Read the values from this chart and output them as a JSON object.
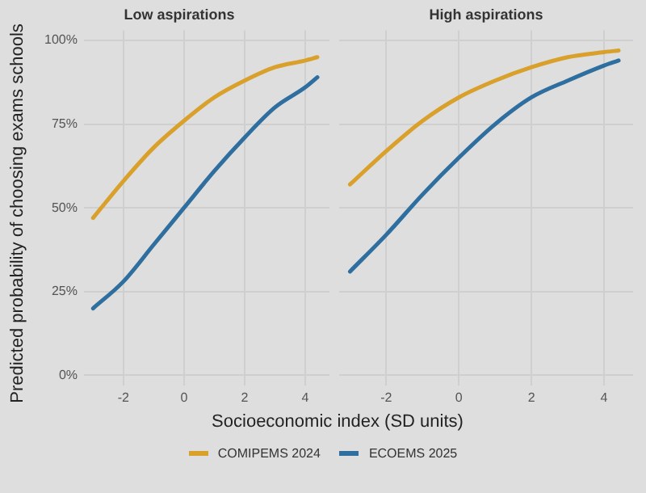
{
  "chart_data": [
    {
      "type": "line",
      "title": "Low aspirations",
      "xlabel": "Socioeconomic index (SD units)",
      "ylabel": "Predicted probability of choosing exams schools",
      "x": [
        -3,
        -2,
        -1,
        0,
        1,
        2,
        3,
        4,
        4.4
      ],
      "series": [
        {
          "name": "COMIPEMS 2024",
          "color": "#d9a02b",
          "values": [
            47,
            58,
            68,
            76,
            83,
            88,
            92,
            94,
            95
          ]
        },
        {
          "name": "ECOEMS 2025",
          "color": "#2f6f9f",
          "values": [
            20,
            28,
            39,
            50,
            61,
            71,
            80,
            86,
            89
          ]
        }
      ],
      "xlim": [
        -3.3,
        4.8
      ],
      "xticks": [
        -2,
        0,
        2,
        4
      ],
      "ylim": [
        -3,
        103
      ],
      "yticks": [
        {
          "value": 0,
          "label": "0%"
        },
        {
          "value": 25,
          "label": "25%"
        },
        {
          "value": 50,
          "label": "50%"
        },
        {
          "value": 75,
          "label": "75%"
        },
        {
          "value": 100,
          "label": "100%"
        }
      ],
      "grid": true,
      "legend": "bottom"
    },
    {
      "type": "line",
      "title": "High aspirations",
      "x": [
        -3,
        -2,
        -1,
        0,
        1,
        2,
        3,
        4,
        4.4
      ],
      "series": [
        {
          "color": "#d9a02b",
          "values": [
            57,
            67,
            76,
            83,
            88,
            92,
            95,
            96.5,
            97
          ]
        },
        {
          "color": "#2f6f9f",
          "values": [
            31,
            42,
            54,
            65,
            75,
            83,
            88,
            92.5,
            94
          ]
        }
      ],
      "xlim": [
        -3.3,
        4.8
      ],
      "xticks": [
        -2,
        0,
        2,
        4
      ],
      "ylim": [
        -3,
        103
      ],
      "yticks": [
        {
          "value": 0,
          "label": null
        },
        {
          "value": 25,
          "label": null
        },
        {
          "value": 50,
          "label": null
        },
        {
          "value": 75,
          "label": null
        },
        {
          "value": 100,
          "label": null
        }
      ],
      "grid": true,
      "tick_labels": "x"
    }
  ]
}
